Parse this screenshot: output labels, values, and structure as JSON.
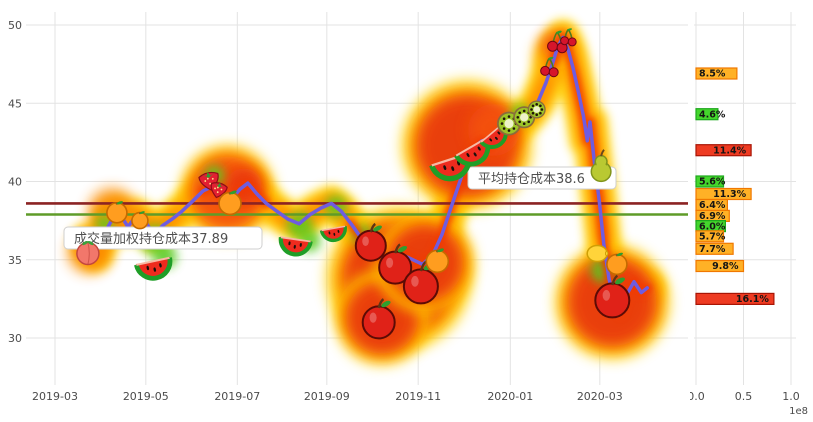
{
  "page": {
    "background": "#ffffff"
  },
  "chart_data": {
    "type": "line",
    "title": "",
    "price_axis": {
      "ticks": [
        30,
        35,
        40,
        45,
        50
      ],
      "min": 30,
      "max": 50
    },
    "time_axis": {
      "ticks": [
        {
          "label": "2019-03",
          "f": 0.038
        },
        {
          "label": "2019-05",
          "f": 0.176
        },
        {
          "label": "2019-07",
          "f": 0.315
        },
        {
          "label": "2019-09",
          "f": 0.451
        },
        {
          "label": "2019-11",
          "f": 0.59
        },
        {
          "label": "2020-01",
          "f": 0.73
        },
        {
          "label": "2020-03",
          "f": 0.866
        }
      ]
    },
    "hlines": [
      {
        "value": 38.6,
        "color": "#8b2323"
      },
      {
        "value": 37.89,
        "color": "#5f9b28"
      }
    ],
    "annotations": [
      {
        "text": "成交量加权持仓成本37.89"
      },
      {
        "text": "平均持仓成本38.6"
      }
    ],
    "series": {
      "color": "#6f5ce0",
      "points": [
        [
          0.088,
          36.2
        ],
        [
          0.1,
          35.4
        ],
        [
          0.112,
          36.6
        ],
        [
          0.125,
          37.6
        ],
        [
          0.137,
          37.9
        ],
        [
          0.149,
          37.1
        ],
        [
          0.161,
          37.8
        ],
        [
          0.176,
          37.4
        ],
        [
          0.188,
          36.6
        ],
        [
          0.202,
          37.2
        ],
        [
          0.216,
          37.6
        ],
        [
          0.231,
          38.1
        ],
        [
          0.246,
          38.7
        ],
        [
          0.263,
          39.4
        ],
        [
          0.278,
          39.7
        ],
        [
          0.292,
          39.1
        ],
        [
          0.305,
          38.8
        ],
        [
          0.319,
          39.5
        ],
        [
          0.331,
          39.9
        ],
        [
          0.345,
          39.2
        ],
        [
          0.359,
          38.6
        ],
        [
          0.375,
          38.1
        ],
        [
          0.392,
          37.6
        ],
        [
          0.409,
          37.3
        ],
        [
          0.426,
          37.9
        ],
        [
          0.442,
          38.3
        ],
        [
          0.458,
          38.6
        ],
        [
          0.473,
          38.1
        ],
        [
          0.488,
          37.3
        ],
        [
          0.503,
          36.4
        ],
        [
          0.518,
          35.7
        ],
        [
          0.535,
          35.2
        ],
        [
          0.552,
          34.9
        ],
        [
          0.567,
          35.3
        ],
        [
          0.582,
          35.0
        ],
        [
          0.597,
          34.7
        ],
        [
          0.613,
          35.4
        ],
        [
          0.626,
          36.6
        ],
        [
          0.638,
          38.1
        ],
        [
          0.65,
          39.6
        ],
        [
          0.663,
          41.2
        ],
        [
          0.675,
          42.2
        ],
        [
          0.687,
          42.6
        ],
        [
          0.699,
          42.2
        ],
        [
          0.711,
          42.9
        ],
        [
          0.723,
          43.1
        ],
        [
          0.736,
          43.5
        ],
        [
          0.748,
          43.9
        ],
        [
          0.76,
          44.4
        ],
        [
          0.772,
          45.1
        ],
        [
          0.784,
          46.3
        ],
        [
          0.793,
          47.4
        ],
        [
          0.802,
          48.6
        ],
        [
          0.81,
          49.2
        ],
        [
          0.818,
          48.4
        ],
        [
          0.825,
          47.3
        ],
        [
          0.833,
          45.8
        ],
        [
          0.841,
          44.2
        ],
        [
          0.847,
          42.6
        ],
        [
          0.851,
          43.8
        ],
        [
          0.857,
          41.5
        ],
        [
          0.865,
          38.8
        ],
        [
          0.872,
          36.0
        ],
        [
          0.88,
          33.8
        ],
        [
          0.888,
          32.2
        ],
        [
          0.897,
          31.6
        ],
        [
          0.907,
          32.8
        ],
        [
          0.918,
          33.6
        ],
        [
          0.929,
          32.9
        ],
        [
          0.938,
          33.2
        ]
      ]
    },
    "heat": {
      "trail_colors": {
        "outer": "#ffd400",
        "mid": "#ff9100",
        "core": "#f23a06",
        "green": "#58cb22"
      },
      "core_segments": [
        [
          0.25,
          0.36
        ],
        [
          0.48,
          0.74
        ],
        [
          0.79,
          0.96
        ]
      ],
      "green_accents": [
        {
          "f": 0.113,
          "p": 37.3,
          "r": 9
        },
        {
          "f": 0.19,
          "p": 36.3,
          "r": 15
        },
        {
          "f": 0.205,
          "p": 35.2,
          "r": 12
        },
        {
          "f": 0.28,
          "p": 40.4,
          "r": 10
        },
        {
          "f": 0.41,
          "p": 37.2,
          "r": 13
        },
        {
          "f": 0.425,
          "p": 36.2,
          "r": 11
        },
        {
          "f": 0.465,
          "p": 38.4,
          "r": 11
        },
        {
          "f": 0.505,
          "p": 36.6,
          "r": 10
        },
        {
          "f": 0.745,
          "p": 44.3,
          "r": 10
        },
        {
          "f": 0.87,
          "p": 34.3,
          "r": 12
        }
      ],
      "blobs": [
        {
          "f": 0.09,
          "p": 35.5,
          "r": 21,
          "c": "#fb8c00"
        },
        {
          "f": 0.125,
          "p": 38.0,
          "r": 24,
          "c": "#fb8c00"
        },
        {
          "f": 0.3,
          "p": 39.3,
          "r": 36,
          "c": "#f4510c"
        },
        {
          "f": 0.325,
          "p": 39.7,
          "r": 18,
          "c": "#e8380d"
        },
        {
          "f": 0.56,
          "p": 33.8,
          "r": 55,
          "c": "#e8380d"
        },
        {
          "f": 0.535,
          "p": 31.3,
          "r": 36,
          "c": "#e8380d"
        },
        {
          "f": 0.6,
          "p": 34.8,
          "r": 38,
          "c": "#e8380d"
        },
        {
          "f": 0.664,
          "p": 42.3,
          "r": 50,
          "c": "#e8380d"
        },
        {
          "f": 0.705,
          "p": 43.3,
          "r": 26,
          "c": "#f4510c"
        },
        {
          "f": 0.8,
          "p": 48.0,
          "r": 22,
          "c": "#ffb300"
        },
        {
          "f": 0.797,
          "p": 48.7,
          "r": 13,
          "c": "#f4510c"
        },
        {
          "f": 0.885,
          "p": 32.3,
          "r": 44,
          "c": "#e8380d"
        }
      ]
    },
    "fruits": [
      {
        "type": "peach",
        "f": 0.088,
        "p": 35.4,
        "s": 11,
        "rot": 0
      },
      {
        "type": "tangerine",
        "f": 0.132,
        "p": 38.0,
        "s": 10,
        "rot": 0
      },
      {
        "type": "tangerine",
        "f": 0.167,
        "p": 37.5,
        "s": 8,
        "rot": 0
      },
      {
        "type": "watermelon",
        "f": 0.187,
        "p": 34.9,
        "s": 17,
        "rot": -12
      },
      {
        "type": "strawberry",
        "f": 0.272,
        "p": 40.2,
        "s": 12,
        "rot": -12
      },
      {
        "type": "strawberry",
        "f": 0.287,
        "p": 39.6,
        "s": 10,
        "rot": 14
      },
      {
        "type": "tangerine",
        "f": 0.304,
        "p": 38.6,
        "s": 11,
        "rot": 0
      },
      {
        "type": "watermelon",
        "f": 0.404,
        "p": 36.3,
        "s": 15,
        "rot": 8
      },
      {
        "type": "watermelon",
        "f": 0.461,
        "p": 37.0,
        "s": 12,
        "rot": -10
      },
      {
        "type": "apple",
        "f": 0.518,
        "p": 35.9,
        "s": 15,
        "rot": 0
      },
      {
        "type": "apple",
        "f": 0.555,
        "p": 34.5,
        "s": 16,
        "rot": 0
      },
      {
        "type": "apple",
        "f": 0.53,
        "p": 31.0,
        "s": 16,
        "rot": 0
      },
      {
        "type": "apple",
        "f": 0.594,
        "p": 33.3,
        "s": 17,
        "rot": 0
      },
      {
        "type": "tangerine",
        "f": 0.619,
        "p": 34.9,
        "s": 11,
        "rot": 0
      },
      {
        "type": "watermelon",
        "f": 0.638,
        "p": 41.4,
        "s": 19,
        "rot": -18
      },
      {
        "type": "watermelon",
        "f": 0.67,
        "p": 42.2,
        "s": 17,
        "rot": -30
      },
      {
        "type": "watermelon",
        "f": 0.702,
        "p": 43.1,
        "s": 14,
        "rot": -40
      },
      {
        "type": "kiwi",
        "f": 0.728,
        "p": 43.7,
        "s": 12,
        "rot": 0
      },
      {
        "type": "kiwi",
        "f": 0.751,
        "p": 44.1,
        "s": 11,
        "rot": 0
      },
      {
        "type": "kiwi",
        "f": 0.77,
        "p": 44.6,
        "s": 9,
        "rot": 0
      },
      {
        "type": "cherry",
        "f": 0.789,
        "p": 47.3,
        "s": 9,
        "rot": 0
      },
      {
        "type": "cherry",
        "f": 0.801,
        "p": 48.9,
        "s": 10,
        "rot": 0
      },
      {
        "type": "cherry",
        "f": 0.818,
        "p": 49.2,
        "s": 8,
        "rot": 0
      },
      {
        "type": "pear",
        "f": 0.868,
        "p": 40.9,
        "s": 14,
        "rot": 0
      },
      {
        "type": "lemon",
        "f": 0.862,
        "p": 35.4,
        "s": 10,
        "rot": 0
      },
      {
        "type": "tangerine",
        "f": 0.892,
        "p": 34.7,
        "s": 10,
        "rot": 0
      },
      {
        "type": "apple",
        "f": 0.885,
        "p": 32.4,
        "s": 17,
        "rot": 0
      }
    ],
    "volume_profile": {
      "x_ticks": [
        "0.0",
        "0.5",
        "1.0"
      ],
      "x_scale_note": "1e8",
      "palette": {
        "orange": {
          "fill": "#ffb126",
          "stroke": "#f07800"
        },
        "green": {
          "fill": "#44d62c",
          "stroke": "#1da81d"
        },
        "red": {
          "fill": "#ee3b22",
          "stroke": "#a81505"
        }
      },
      "bars": [
        {
          "price": 46.9,
          "volume_e8": 0.43,
          "label": "8.5%",
          "color": "orange"
        },
        {
          "price": 44.3,
          "volume_e8": 0.23,
          "label": "4.6%",
          "color": "green"
        },
        {
          "price": 42.0,
          "volume_e8": 0.58,
          "label": "11.4%",
          "color": "red"
        },
        {
          "price": 40.0,
          "volume_e8": 0.29,
          "label": "5.6%",
          "color": "green"
        },
        {
          "price": 39.2,
          "volume_e8": 0.58,
          "label": "11.3%",
          "color": "orange"
        },
        {
          "price": 38.5,
          "volume_e8": 0.33,
          "label": "6.4%",
          "color": "orange"
        },
        {
          "price": 37.8,
          "volume_e8": 0.35,
          "label": "6.9%",
          "color": "orange"
        },
        {
          "price": 37.15,
          "volume_e8": 0.31,
          "label": "6.0%",
          "color": "green"
        },
        {
          "price": 36.5,
          "volume_e8": 0.29,
          "label": "5.7%",
          "color": "orange"
        },
        {
          "price": 35.7,
          "volume_e8": 0.39,
          "label": "7.7%",
          "color": "orange"
        },
        {
          "price": 34.6,
          "volume_e8": 0.5,
          "label": "9.8%",
          "color": "orange"
        },
        {
          "price": 32.5,
          "volume_e8": 0.82,
          "label": "16.1%",
          "color": "red"
        }
      ]
    }
  }
}
